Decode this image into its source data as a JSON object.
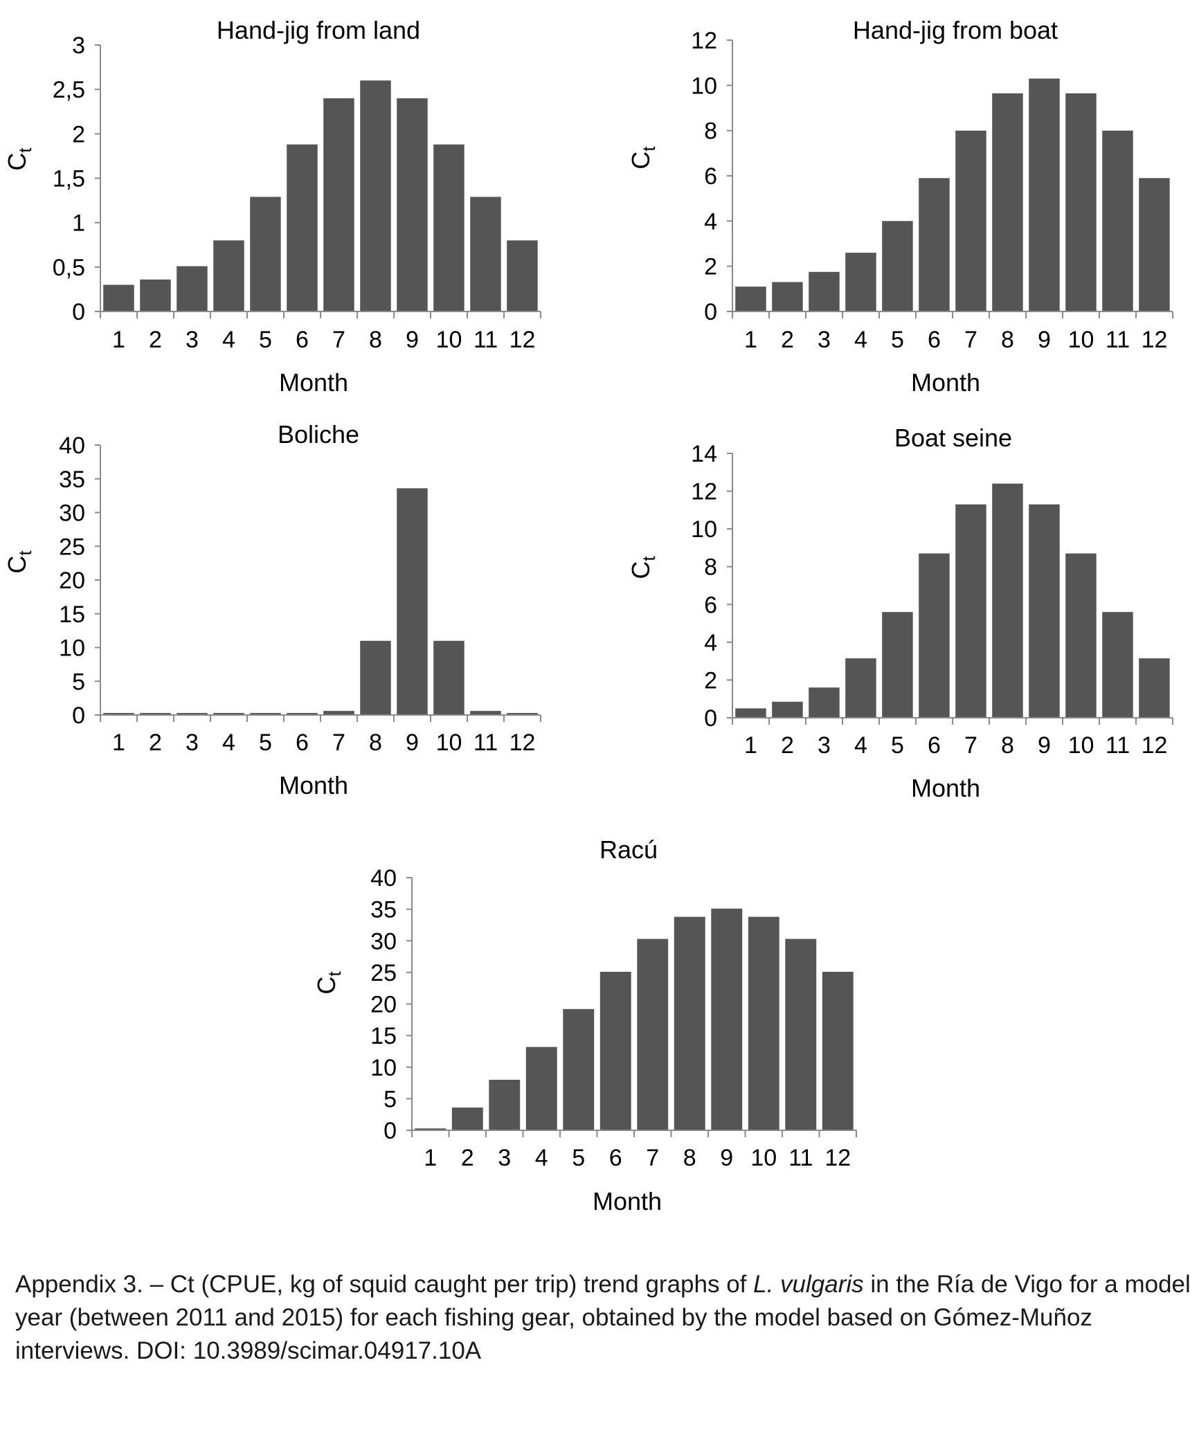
{
  "chart_data": [
    {
      "type": "bar",
      "title": "Hand-jig from land",
      "xlabel": "Month",
      "ylabel": "C",
      "ylabel_sub": "t",
      "categories": [
        "1",
        "2",
        "3",
        "4",
        "5",
        "6",
        "7",
        "8",
        "9",
        "10",
        "11",
        "12"
      ],
      "values": [
        0.3,
        0.36,
        0.51,
        0.8,
        1.29,
        1.88,
        2.4,
        2.6,
        2.4,
        1.88,
        1.29,
        0.8
      ],
      "ylim": [
        0,
        3
      ],
      "yticks": [
        "0",
        "0,5",
        "1",
        "1,5",
        "2",
        "2,5",
        "3"
      ],
      "ytick_values": [
        0,
        0.5,
        1,
        1.5,
        2,
        2.5,
        3
      ],
      "grid": false,
      "color": "#555555"
    },
    {
      "type": "bar",
      "title": "Hand-jig from boat",
      "xlabel": "Month",
      "ylabel": "C",
      "ylabel_sub": "t",
      "categories": [
        "1",
        "2",
        "3",
        "4",
        "5",
        "6",
        "7",
        "8",
        "9",
        "10",
        "11",
        "12"
      ],
      "values": [
        1.1,
        1.3,
        1.75,
        2.6,
        4.0,
        5.9,
        8.0,
        9.65,
        10.3,
        9.65,
        8.0,
        5.9
      ],
      "ylim": [
        0,
        12
      ],
      "yticks": [
        "0",
        "2",
        "4",
        "6",
        "8",
        "10",
        "12"
      ],
      "ytick_values": [
        0,
        2,
        4,
        6,
        8,
        10,
        12
      ],
      "grid": false,
      "color": "#555555"
    },
    {
      "type": "bar",
      "title": "Boliche",
      "xlabel": "Month",
      "ylabel": "C",
      "ylabel_sub": "t",
      "categories": [
        "1",
        "2",
        "3",
        "4",
        "5",
        "6",
        "7",
        "8",
        "9",
        "10",
        "11",
        "12"
      ],
      "values": [
        0.3,
        0.3,
        0.3,
        0.3,
        0.3,
        0.3,
        0.6,
        11.0,
        33.6,
        11.0,
        0.6,
        0.3
      ],
      "ylim": [
        0,
        40
      ],
      "yticks": [
        "0",
        "5",
        "10",
        "15",
        "20",
        "25",
        "30",
        "35",
        "40"
      ],
      "ytick_values": [
        0,
        5,
        10,
        15,
        20,
        25,
        30,
        35,
        40
      ],
      "grid": false,
      "color": "#555555"
    },
    {
      "type": "bar",
      "title": "Boat seine",
      "xlabel": "Month",
      "ylabel": "C",
      "ylabel_sub": "t",
      "categories": [
        "1",
        "2",
        "3",
        "4",
        "5",
        "6",
        "7",
        "8",
        "9",
        "10",
        "11",
        "12"
      ],
      "values": [
        0.5,
        0.85,
        1.6,
        3.15,
        5.6,
        8.7,
        11.3,
        12.4,
        11.3,
        8.7,
        5.6,
        3.15
      ],
      "ylim": [
        0,
        14
      ],
      "yticks": [
        "0",
        "2",
        "4",
        "6",
        "8",
        "10",
        "12",
        "14"
      ],
      "ytick_values": [
        0,
        2,
        4,
        6,
        8,
        10,
        12,
        14
      ],
      "grid": false,
      "color": "#555555"
    },
    {
      "type": "bar",
      "title": "Racú",
      "xlabel": "Month",
      "ylabel": "C",
      "ylabel_sub": "t",
      "categories": [
        "1",
        "2",
        "3",
        "4",
        "5",
        "6",
        "7",
        "8",
        "9",
        "10",
        "11",
        "12"
      ],
      "values": [
        0.3,
        3.6,
        8.0,
        13.2,
        19.2,
        25.1,
        30.3,
        33.8,
        35.1,
        33.8,
        30.3,
        25.1
      ],
      "ylim": [
        0,
        40
      ],
      "yticks": [
        "0",
        "5",
        "10",
        "15",
        "20",
        "25",
        "30",
        "35",
        "40"
      ],
      "ytick_values": [
        0,
        5,
        10,
        15,
        20,
        25,
        30,
        35,
        40
      ],
      "grid": false,
      "color": "#555555"
    }
  ],
  "caption": {
    "text_before": "Appendix 3. – Ct (CPUE, kg of squid caught per trip) trend graphs of ",
    "species": "L. vulgaris",
    "text_after": " in the Ría de Vigo for a model year (between 2011 and 2015) for each fishing gear, obtained by the model based on Gómez-Muñoz interviews. DOI: 10.3989/scimar.04917.10A"
  }
}
